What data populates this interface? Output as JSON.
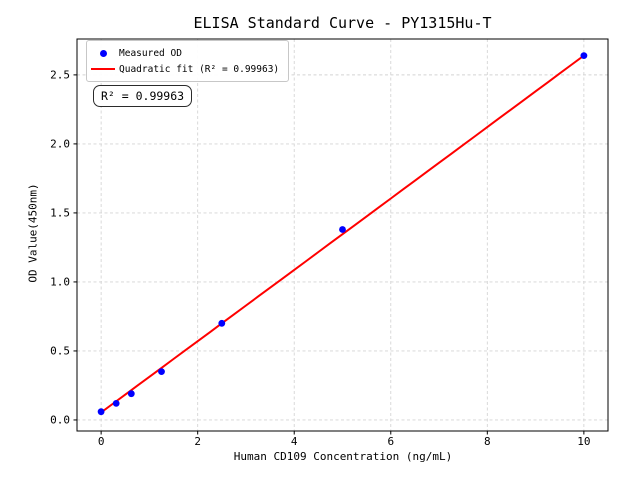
{
  "figure": {
    "background": "#ffffff",
    "title": "ELISA Standard Curve - PY1315Hu-T"
  },
  "legend": {
    "position": "upper-left",
    "items": [
      {
        "label": "Measured OD",
        "marker": "circle",
        "color": "#0000ff"
      },
      {
        "label": "Quadratic fit (R² = 0.99963)",
        "marker": "line",
        "color": "#ff0000"
      }
    ]
  },
  "annotation": {
    "text": "R² = 0.99963",
    "r_squared": 0.99963
  },
  "chart_data": {
    "type": "scatter",
    "title": "ELISA Standard Curve - PY1315Hu-T",
    "xlabel": "Human CD109 Concentration (ng/mL)",
    "ylabel": "OD Value(450nm)",
    "xlim": [
      -0.5,
      10.5
    ],
    "ylim": [
      -0.08,
      2.76
    ],
    "x_ticks": [
      0,
      2,
      4,
      6,
      8,
      10
    ],
    "x_tick_labels": [
      "0",
      "2",
      "4",
      "6",
      "8",
      "10"
    ],
    "y_ticks": [
      0.0,
      0.5,
      1.0,
      1.5,
      2.0,
      2.5
    ],
    "y_tick_labels": [
      "0.0",
      "0.5",
      "1.0",
      "1.5",
      "2.0",
      "2.5"
    ],
    "grid": "dashed",
    "grid_color": "#d4d4d4",
    "legend_position": "upper-left",
    "series": [
      {
        "name": "Measured OD",
        "plot_type": "scatter",
        "color": "#0000ff",
        "x": [
          0,
          0.3125,
          0.625,
          1.25,
          2.5,
          5,
          10
        ],
        "y": [
          0.06,
          0.12,
          0.19,
          0.35,
          0.7,
          1.38,
          2.64
        ]
      },
      {
        "name": "Quadratic fit (R² = 0.99963)",
        "plot_type": "line",
        "color": "#ff0000",
        "fit": {
          "a": 0.055,
          "b": 0.2578,
          "c": 7e-05,
          "x_min": 0,
          "x_max": 10
        },
        "r_squared": 0.99963
      }
    ]
  }
}
